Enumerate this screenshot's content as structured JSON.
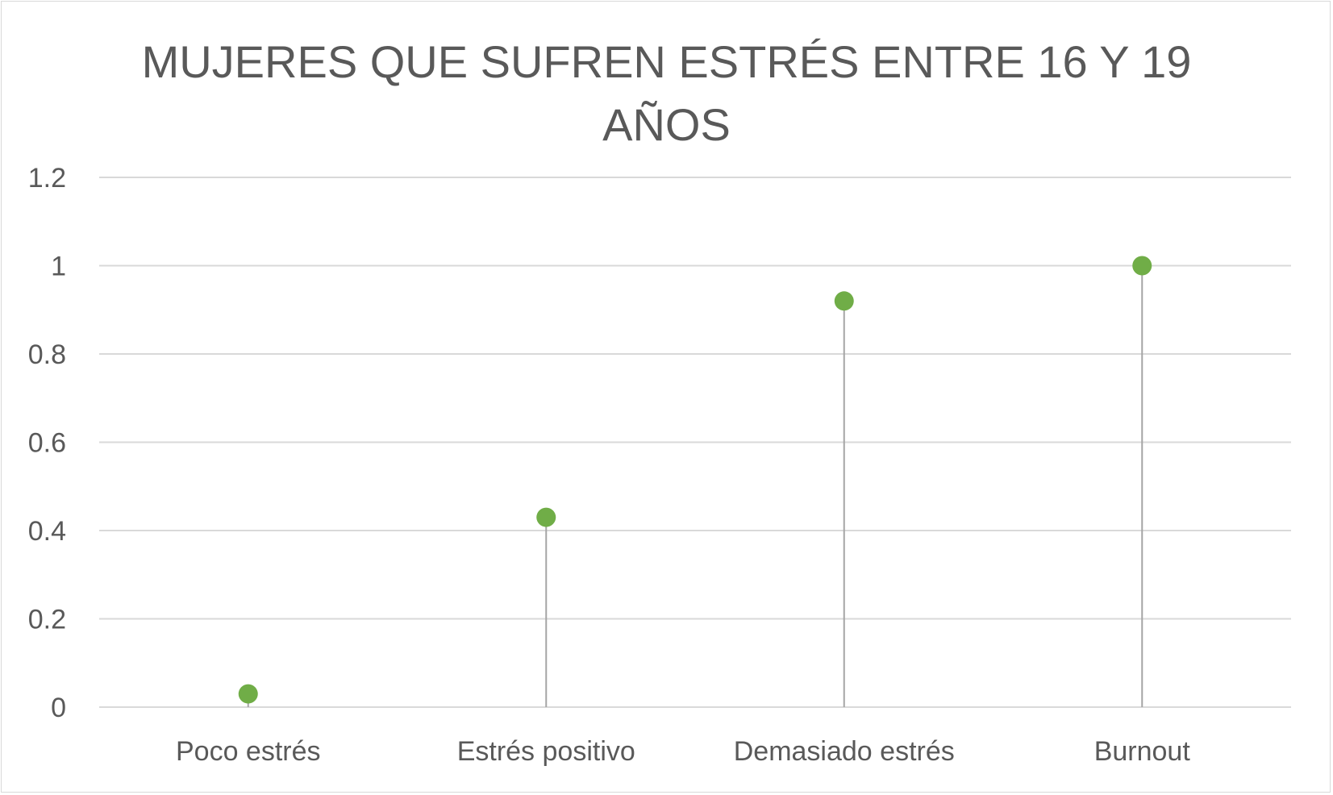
{
  "chart_data": {
    "type": "scatter",
    "title_lines": [
      "MUJERES QUE SUFREN ESTRÉS ENTRE 16 Y 19",
      "AÑOS"
    ],
    "categories": [
      "Poco estrés",
      "Estrés positivo",
      "Demasiado estrés",
      "Burnout"
    ],
    "values": [
      0.03,
      0.43,
      0.92,
      1.0
    ],
    "ylim": [
      0,
      1.2
    ],
    "yticks": [
      "0",
      "0.2",
      "0.4",
      "0.6",
      "0.8",
      "1",
      "1.2"
    ],
    "ytick_values": [
      0,
      0.2,
      0.4,
      0.6,
      0.8,
      1.0,
      1.2
    ],
    "grid": true,
    "drop_lines": true,
    "colors": {
      "marker": "#70ad47",
      "gridline": "#d9d9d9",
      "drop_line": "#a5a5a5",
      "text": "#595959"
    }
  }
}
